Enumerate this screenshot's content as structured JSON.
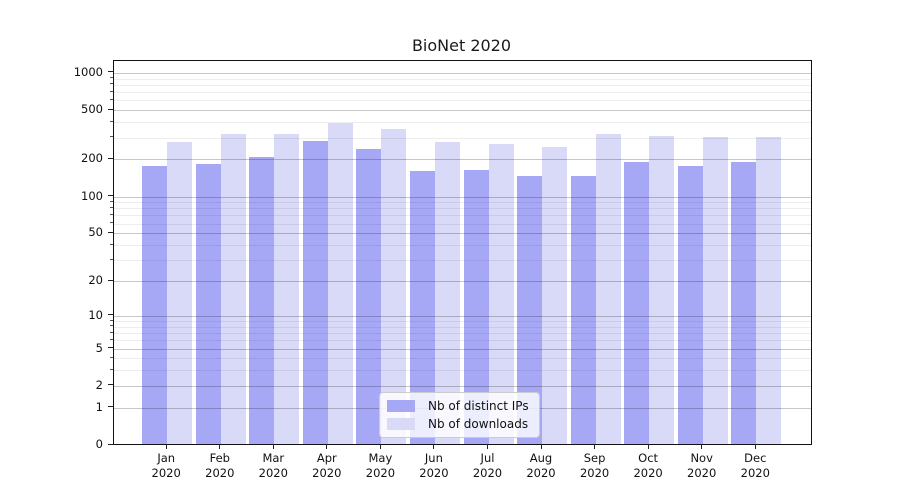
{
  "chart_data": {
    "type": "bar",
    "title": "BioNet 2020",
    "categories": [
      "Jan",
      "Feb",
      "Mar",
      "Apr",
      "May",
      "Jun",
      "Jul",
      "Aug",
      "Sep",
      "Oct",
      "Nov",
      "Dec"
    ],
    "year": "2020",
    "series": [
      {
        "name": "Nb of distinct IPs",
        "color": "#a7a8f5",
        "values": [
          177,
          183,
          208,
          281,
          245,
          161,
          164,
          148,
          147,
          190,
          176,
          190
        ]
      },
      {
        "name": "Nb of downloads",
        "color": "#d9daf8",
        "values": [
          278,
          320,
          320,
          396,
          356,
          278,
          267,
          251,
          324,
          310,
          306,
          306
        ]
      }
    ],
    "xlabel": "",
    "ylabel": "",
    "yscale": "log1p",
    "ylim": [
      0,
      1260
    ],
    "yticks": [
      0,
      1,
      2,
      5,
      10,
      20,
      50,
      100,
      200,
      500,
      1000
    ],
    "yticks_minor": [
      3,
      4,
      6,
      7,
      8,
      9,
      30,
      40,
      60,
      70,
      80,
      90,
      300,
      400,
      600,
      700,
      800,
      900
    ],
    "grid": true,
    "legend_position": "lower-center"
  }
}
